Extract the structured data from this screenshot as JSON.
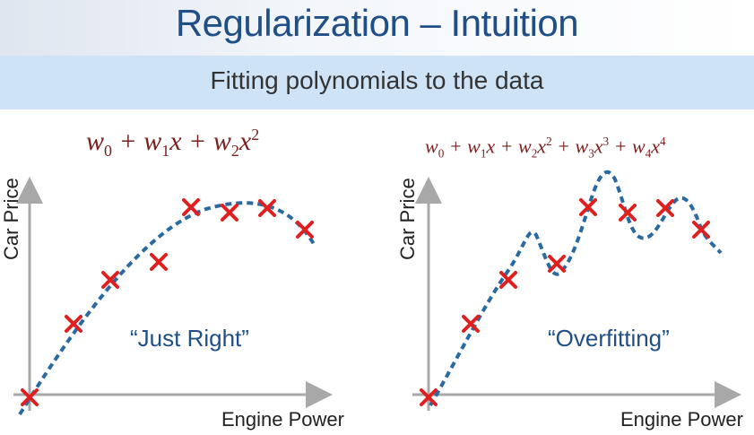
{
  "title": "Regularization – Intuition",
  "subtitle": "Fitting polynomials to the data",
  "colors": {
    "title": "#1f4f86",
    "subtitle_bar": "#cfe3f6",
    "curve": "#2a6aa0",
    "marker": "#e02020",
    "equation": "#7b1e1e",
    "axis": "#a8a8a8"
  },
  "left_panel": {
    "eq_terms": [
      "w",
      "0",
      " + ",
      "w",
      "1",
      "x + ",
      "w",
      "2",
      "x",
      "2"
    ],
    "label": "“Just Right”",
    "ylabel": "Car Price",
    "xlabel": "Engine Power"
  },
  "right_panel": {
    "label": "“Overfitting”",
    "ylabel": "Car Price",
    "xlabel": "Engine Power"
  }
}
